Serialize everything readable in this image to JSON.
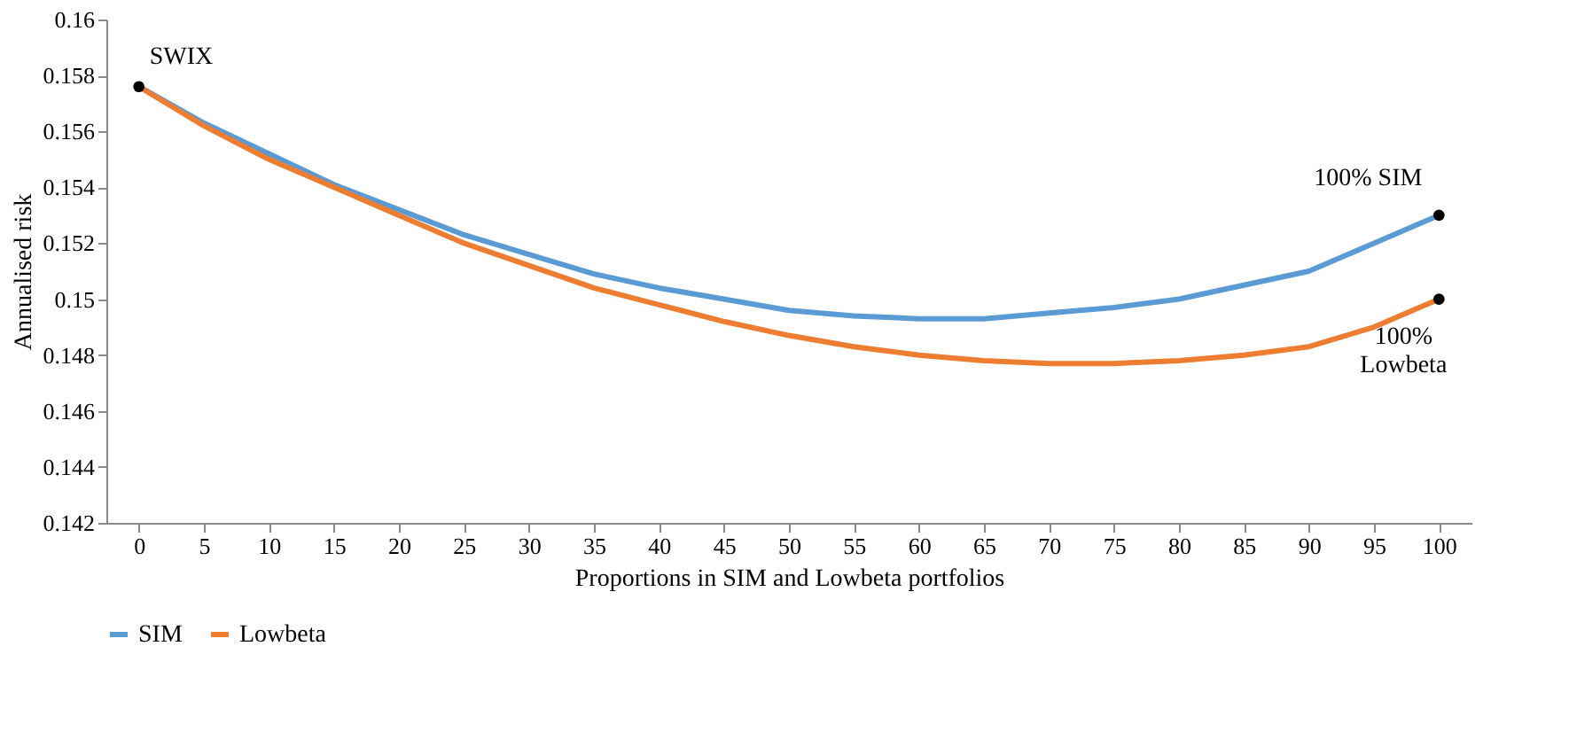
{
  "chart_data": {
    "type": "line",
    "xlabel": "Proportions in SIM and Lowbeta portfolios",
    "ylabel": "Annualised risk",
    "categories": [
      "0",
      "5",
      "10",
      "15",
      "20",
      "25",
      "30",
      "35",
      "40",
      "45",
      "50",
      "55",
      "60",
      "65",
      "70",
      "75",
      "80",
      "85",
      "90",
      "95",
      "100"
    ],
    "series": [
      {
        "name": "SIM",
        "color": "#5b9bd5",
        "values": [
          0.1576,
          0.1563,
          0.1552,
          0.1541,
          0.1532,
          0.1523,
          0.1516,
          0.1509,
          0.1504,
          0.15,
          0.1496,
          0.1494,
          0.1493,
          0.1493,
          0.1495,
          0.1497,
          0.15,
          0.1505,
          0.151,
          0.152,
          0.153
        ]
      },
      {
        "name": "Lowbeta",
        "color": "#ed7d31",
        "values": [
          0.1576,
          0.1562,
          0.155,
          0.154,
          0.153,
          0.152,
          0.1512,
          0.1504,
          0.1498,
          0.1492,
          0.1487,
          0.1483,
          0.148,
          0.1478,
          0.1477,
          0.1477,
          0.1478,
          0.148,
          0.1483,
          0.149,
          0.15
        ]
      }
    ],
    "ylim": [
      0.142,
      0.16
    ],
    "yticks": [
      0.142,
      0.144,
      0.146,
      0.148,
      0.15,
      0.152,
      0.154,
      0.156,
      0.158,
      0.16
    ],
    "legend": "bottom",
    "grid": false,
    "annotations": [
      {
        "text": "SWIX",
        "x": "0",
        "y": 0.1576
      },
      {
        "text": "100% SIM",
        "x": "100",
        "y": 0.153
      },
      {
        "text": "100%\nLowbeta",
        "x": "100",
        "y": 0.15
      }
    ]
  }
}
